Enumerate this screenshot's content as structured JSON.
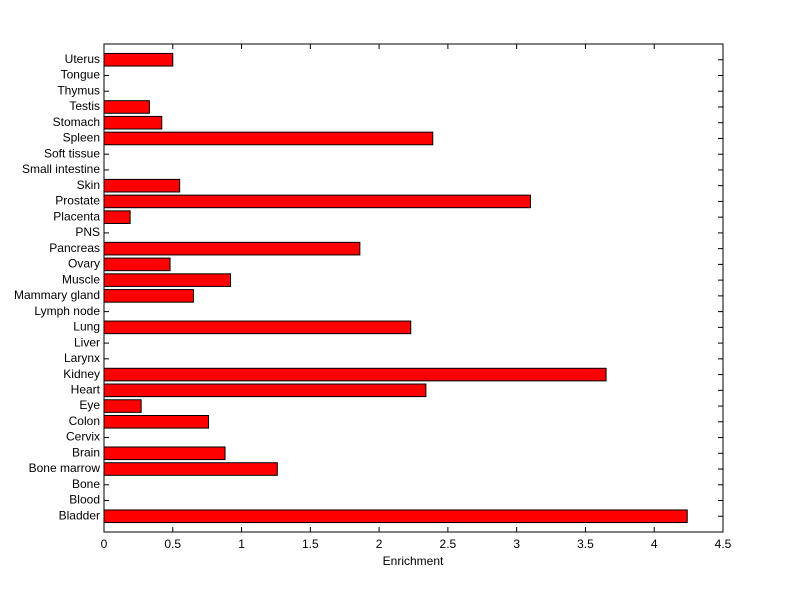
{
  "chart_data": {
    "type": "barh",
    "xlabel": "Enrichment",
    "categories": [
      "Bladder",
      "Blood",
      "Bone",
      "Bone marrow",
      "Brain",
      "Cervix",
      "Colon",
      "Eye",
      "Heart",
      "Kidney",
      "Larynx",
      "Liver",
      "Lung",
      "Lymph node",
      "Mammary gland",
      "Muscle",
      "Ovary",
      "Pancreas",
      "PNS",
      "Placenta",
      "Prostate",
      "Skin",
      "Small intestine",
      "Soft tissue",
      "Spleen",
      "Stomach",
      "Testis",
      "Thymus",
      "Tongue",
      "Uterus"
    ],
    "values": [
      4.24,
      0,
      0,
      1.26,
      0.88,
      0,
      0.76,
      0.27,
      2.34,
      3.65,
      0,
      0,
      2.23,
      0,
      0.65,
      0.92,
      0.48,
      1.86,
      0,
      0.19,
      3.1,
      0.55,
      0,
      0,
      2.39,
      0.42,
      0.33,
      0,
      0,
      0.5
    ],
    "color": "#ff0000",
    "xlim": [
      0,
      4.5
    ],
    "xticks": [
      0,
      0.5,
      1,
      1.5,
      2,
      2.5,
      3,
      3.5,
      4,
      4.5
    ]
  }
}
